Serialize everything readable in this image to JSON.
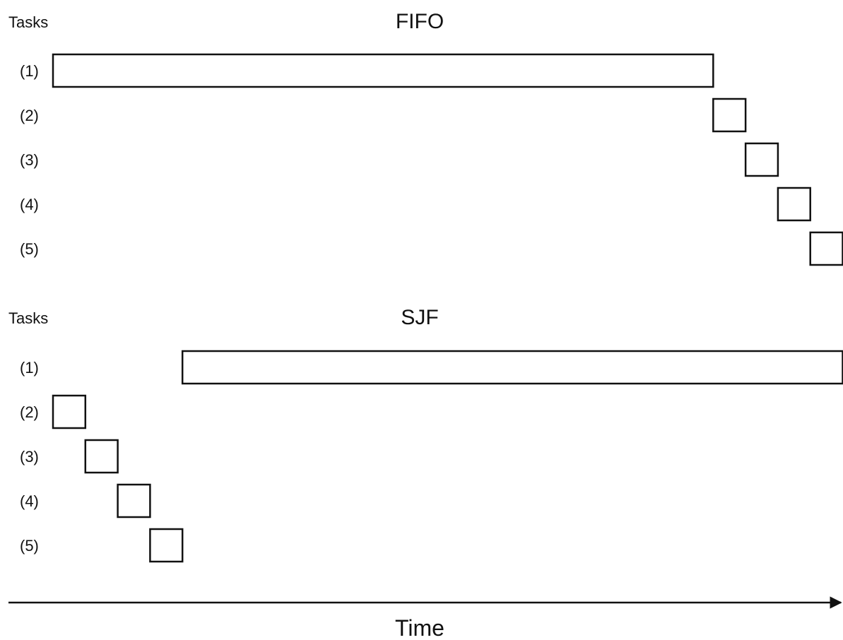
{
  "fifo": {
    "tasks_label": "Tasks",
    "title": "FIFO",
    "tasks": [
      {
        "label": "(1)",
        "start": 0,
        "duration": 20.4
      },
      {
        "label": "(2)",
        "start": 20.4,
        "duration": 1
      },
      {
        "label": "(3)",
        "start": 21.4,
        "duration": 1
      },
      {
        "label": "(4)",
        "start": 22.4,
        "duration": 1
      },
      {
        "label": "(5)",
        "start": 23.4,
        "duration": 1
      }
    ]
  },
  "sjf": {
    "tasks_label": "Tasks",
    "title": "SJF",
    "tasks": [
      {
        "label": "(1)",
        "start": 4,
        "duration": 20.4
      },
      {
        "label": "(2)",
        "start": 0,
        "duration": 1
      },
      {
        "label": "(3)",
        "start": 1,
        "duration": 1
      },
      {
        "label": "(4)",
        "start": 2,
        "duration": 1
      },
      {
        "label": "(5)",
        "start": 3,
        "duration": 1
      }
    ]
  },
  "axis": {
    "label": "Time",
    "color": "#111111"
  }
}
